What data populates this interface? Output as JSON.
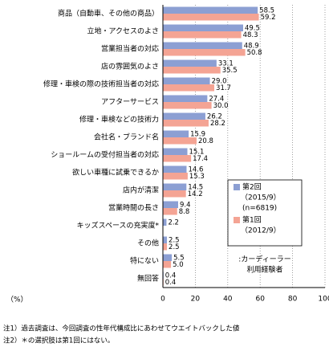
{
  "chart_data": {
    "type": "hbar",
    "categories": [
      "商品（自動車、その他の商品）",
      "立地・アクセスのよさ",
      "営業担当者の対応",
      "店の雰囲気のよさ",
      "修理・車検の際の技術担当者の対応",
      "アフターサービス",
      "修理・車検などの技術力",
      "会社名・ブランド名",
      "ショールームの受付担当者の対応",
      "欲しい車種に試乗できるか",
      "店内が清潔",
      "営業時間の長さ",
      "キッズスペースの充実度*",
      "その他",
      "特にない",
      "無回答"
    ],
    "series": [
      {
        "name": "第2回",
        "period": "（2015/9）",
        "sample": "(n=6819)",
        "color": "#8c9fd3",
        "values": [
          58.5,
          49.5,
          48.9,
          33.1,
          29.0,
          27.4,
          26.2,
          15.9,
          15.1,
          14.6,
          14.5,
          9.4,
          2.2,
          2.5,
          5.5,
          0.4
        ],
        "value_labels": [
          "58.5",
          "49.5",
          "48.9",
          "33.1",
          "29.0",
          "27.4",
          "26.2",
          "15.9",
          "15.1",
          "14.6",
          "14.5",
          "9.4",
          "2.2",
          "2.5",
          "5.5",
          "0.4"
        ]
      },
      {
        "name": "第1回",
        "period": "（2012/9）",
        "color": "#f4a494",
        "values": [
          59.2,
          48.3,
          50.8,
          35.5,
          31.7,
          30.0,
          28.2,
          20.8,
          17.4,
          15.3,
          14.2,
          8.8,
          null,
          2.5,
          5.0,
          0.4
        ],
        "value_labels": [
          "59.2",
          "48.3",
          "50.8",
          "35.5",
          "31.7",
          "30.0",
          "28.2",
          "20.8",
          "17.4",
          "15.3",
          "14.2",
          "8.8",
          null,
          "2.5",
          "5.0",
          "0.4"
        ]
      }
    ],
    "xlim": [
      0,
      100
    ],
    "xticks": [
      0,
      20,
      40,
      60,
      80,
      100
    ],
    "grid": true,
    "xlabel": "（%）",
    "legend_note": [
      ":カーディーラー",
      "利用経験者"
    ],
    "notes": [
      "注1）過去調査は、今回調査の性年代構成比にあわせてウエイトバックした値",
      "注2）＊の選択肢は第1回にはない。"
    ]
  }
}
